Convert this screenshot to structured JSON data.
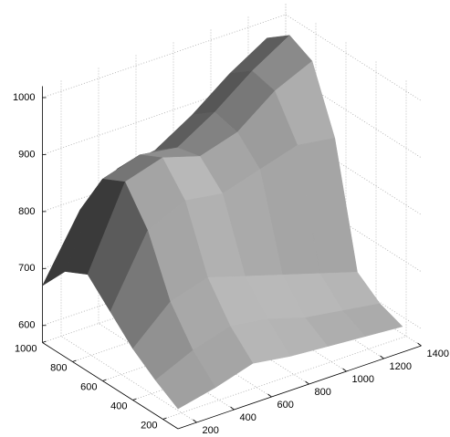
{
  "chart_data": {
    "type": "surface",
    "x": [
      100,
      300,
      500,
      700,
      900,
      1100,
      1300
    ],
    "y": [
      100,
      250,
      400,
      550,
      700,
      850,
      1000
    ],
    "z": [
      [
        605,
        620,
        640,
        630,
        625,
        620,
        615
      ],
      [
        630,
        660,
        680,
        670,
        650,
        640,
        630
      ],
      [
        660,
        720,
        740,
        720,
        700,
        680,
        660
      ],
      [
        700,
        820,
        850,
        840,
        860,
        880,
        870
      ],
      [
        740,
        880,
        900,
        880,
        900,
        950,
        980
      ],
      [
        720,
        860,
        880,
        870,
        910,
        960,
        1000
      ],
      [
        670,
        780,
        830,
        840,
        880,
        930,
        970
      ]
    ],
    "xlim": [
      100,
      1400
    ],
    "ylim": [
      100,
      1000
    ],
    "zlim": [
      570,
      1020
    ],
    "xticks": [
      200,
      400,
      600,
      800,
      1000,
      1200,
      1400
    ],
    "yticks": [
      200,
      400,
      600,
      800,
      1000
    ],
    "zticks": [
      600,
      700,
      800,
      900,
      1000
    ],
    "grid": true,
    "color": "#808080"
  }
}
